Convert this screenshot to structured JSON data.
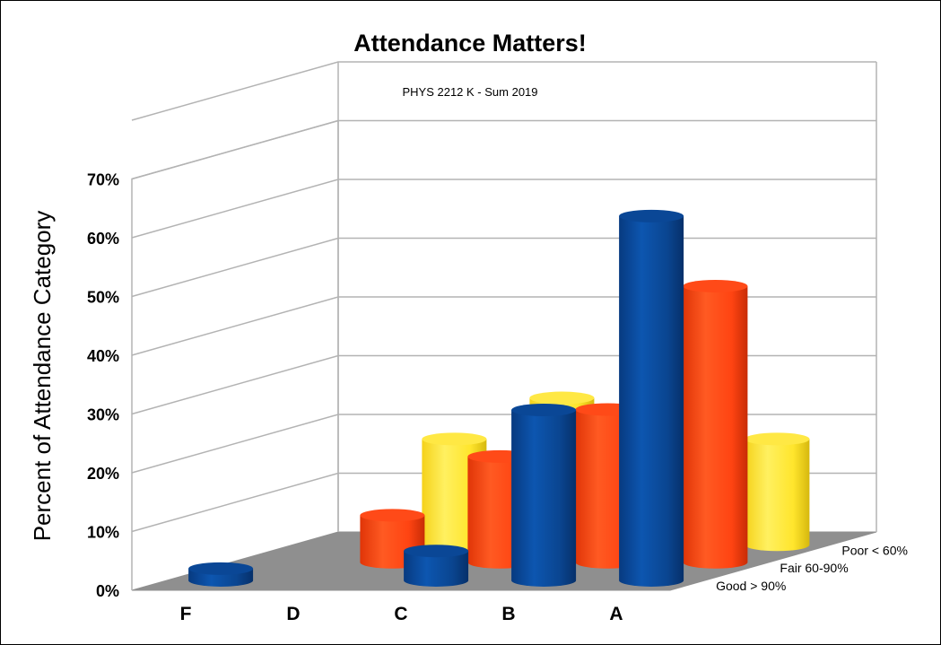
{
  "chart_data": {
    "type": "bar",
    "title": "Attendance Matters!",
    "subtitle": "PHYS 2212 K - Sum 2019",
    "ylabel": "Percent of Attendance Category",
    "xlabel": "",
    "categories": [
      "F",
      "D",
      "C",
      "B",
      "A"
    ],
    "y_ticks": [
      "0%",
      "10%",
      "20%",
      "30%",
      "40%",
      "50%",
      "60%",
      "70%"
    ],
    "ylim": [
      0,
      70
    ],
    "grid": true,
    "legend_position": "depth-axis",
    "series": [
      {
        "name": "Good > 90%",
        "color": "#0b4a9a",
        "values": [
          2,
          0,
          5,
          29,
          62
        ]
      },
      {
        "name": "Fair 60-90%",
        "color": "#ff4413",
        "values": [
          0,
          8,
          18,
          26,
          47
        ]
      },
      {
        "name": "Poor < 60%",
        "color": "#ffe52c",
        "values": [
          0,
          18,
          25,
          31,
          18
        ]
      }
    ],
    "depth_labels": [
      "Good > 90%",
      "Fair 60-90%",
      "Poor < 60%"
    ]
  }
}
